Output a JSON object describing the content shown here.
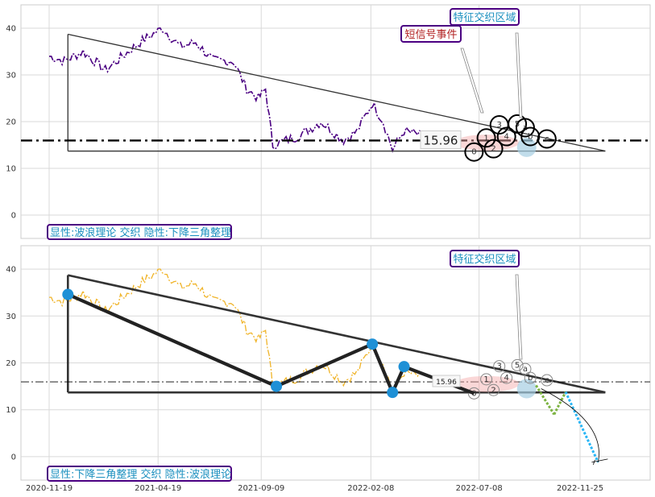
{
  "chart_data": [
    {
      "type": "line",
      "panel": "top",
      "x_ticks": [
        "2020-11-19",
        "2021-04-19",
        "2021-09-09",
        "2022-02-08",
        "2022-07-08",
        "2022-11-25"
      ],
      "y_ticks": [
        0,
        10,
        20,
        30,
        40
      ],
      "ylim": [
        -5,
        45
      ],
      "grid": true,
      "price_line_value": 15.96,
      "price_line_label": "15.96",
      "annotations": {
        "short_signal": "短信号事件",
        "feature_zone": "特征交织区域",
        "caption": "显性:波浪理论 交织 隐性:下降三角整理"
      },
      "wave_point_labels": [
        "0",
        "1",
        "2",
        "3",
        "4",
        "5",
        "a",
        "b",
        "c"
      ],
      "triangle": {
        "upper": [
          [
            "2020-12-15",
            38.7
          ],
          [
            "2022-12-30",
            13.7
          ]
        ],
        "lower": [
          [
            "2020-12-15",
            13.7
          ],
          [
            "2022-12-30",
            13.7
          ]
        ]
      },
      "colors": {
        "price": "#4b0082",
        "triangle": "#333333",
        "dashline": "#000000",
        "caption_text": "#1a8fbf",
        "signal_text": "#b22222"
      }
    },
    {
      "type": "line",
      "panel": "bottom",
      "x_ticks": [
        "2020-11-19",
        "2021-04-19",
        "2021-09-09",
        "2022-02-08",
        "2022-07-08",
        "2022-11-25"
      ],
      "y_ticks": [
        0,
        10,
        20,
        30,
        40
      ],
      "ylim": [
        -5,
        45
      ],
      "grid": true,
      "price_line_value": 15.96,
      "price_line_label": "15.96",
      "annotations": {
        "feature_zone": "特征交织区域",
        "caption": "显性:下降三角整理 交织 隐性:波浪理论"
      },
      "pivot_points": [
        [
          "2020-12-15",
          34.6
        ],
        [
          "2021-09-30",
          15.0
        ],
        [
          "2022-02-10",
          24.0
        ],
        [
          "2022-03-10",
          13.7
        ],
        [
          "2022-03-26",
          19.2
        ]
      ],
      "wave_point_labels": [
        "0",
        "1",
        "2",
        "3",
        "4",
        "5",
        "a",
        "b",
        "c"
      ],
      "forecast": [
        [
          "2022-09-25",
          15.2
        ],
        [
          "2022-10-20",
          9.0
        ],
        [
          "2022-11-05",
          13.8
        ],
        [
          "2022-12-20",
          -1.2
        ]
      ],
      "colors": {
        "price": "#f0b429",
        "triangle": "#333333",
        "wave": "#222222",
        "pivot": "#1e90d6",
        "forecast_green": "#7cb342",
        "forecast_blue": "#29b6f6"
      }
    }
  ]
}
